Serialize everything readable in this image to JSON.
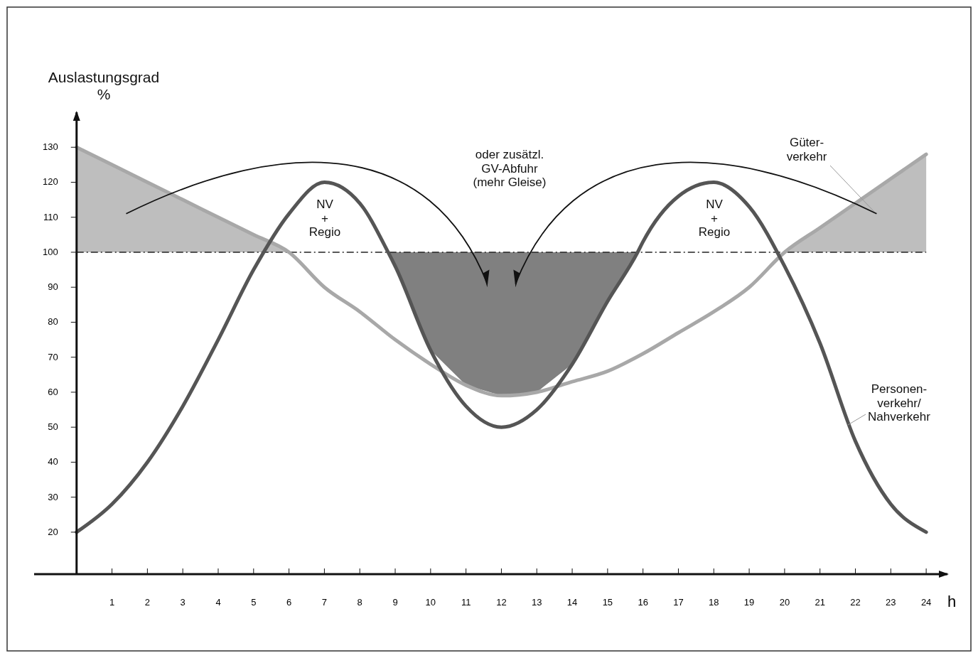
{
  "chart_data": {
    "type": "line",
    "ylabel": "Auslastungsgrad\n%",
    "xlabel": "h",
    "xlim": [
      -1.2,
      24.6
    ],
    "ylim": [
      8,
      140
    ],
    "xticks": [
      1,
      2,
      3,
      4,
      5,
      6,
      7,
      8,
      9,
      10,
      11,
      12,
      13,
      14,
      15,
      16,
      17,
      18,
      19,
      20,
      21,
      22,
      23,
      24
    ],
    "yticks": [
      20,
      30,
      40,
      50,
      60,
      70,
      80,
      90,
      100,
      110,
      120,
      130
    ],
    "grid": false,
    "ref_lines": [
      {
        "axis": "y",
        "value": 100,
        "color": "#222222",
        "line_style": "dashed"
      }
    ],
    "series": [
      {
        "color": "#a8a8a8",
        "x": [
          0,
          1,
          2,
          3,
          4,
          5,
          6,
          7,
          8,
          9,
          10,
          11,
          12,
          13,
          14,
          15,
          16,
          17,
          18,
          19,
          20,
          21,
          22,
          23,
          24
        ],
        "values": [
          130,
          125,
          120,
          115,
          110,
          105,
          100,
          90,
          83,
          75,
          68,
          62,
          59,
          60,
          63,
          66,
          71,
          77,
          83,
          90,
          100,
          107,
          114,
          121,
          128
        ],
        "lower": [
          100,
          100,
          100,
          100,
          100,
          100,
          100,
          null,
          null,
          null,
          null,
          null,
          null,
          null,
          null,
          null,
          null,
          null,
          null,
          null,
          100,
          100,
          100,
          100,
          100
        ],
        "upper": [
          130,
          125,
          120,
          115,
          110,
          105,
          100,
          null,
          null,
          null,
          null,
          null,
          null,
          null,
          null,
          null,
          null,
          null,
          null,
          null,
          100,
          107,
          114,
          121,
          128
        ]
      },
      {
        "color": "#555555",
        "x": [
          0,
          1,
          2,
          3,
          4,
          5,
          6,
          7,
          8,
          8.8,
          9,
          10,
          11,
          12,
          13,
          14,
          15,
          15.85,
          16,
          17,
          18,
          19,
          20,
          21,
          22,
          23,
          24
        ],
        "values": [
          20,
          28,
          40,
          56,
          75,
          95,
          111,
          120,
          114,
          100,
          96,
          72,
          56,
          50,
          55,
          68,
          86,
          100,
          103,
          116,
          120,
          113,
          96,
          74,
          46,
          28,
          20
        ],
        "lower": [
          null,
          null,
          null,
          null,
          null,
          null,
          null,
          null,
          null,
          100,
          96,
          72,
          62,
          59,
          60,
          68,
          86,
          100,
          null,
          null,
          null,
          null,
          null,
          null,
          null,
          null,
          null
        ],
        "upper": [
          null,
          null,
          null,
          null,
          null,
          null,
          null,
          null,
          null,
          100,
          100,
          100,
          100,
          100,
          100,
          100,
          100,
          100,
          null,
          null,
          null,
          null,
          null,
          null,
          null,
          null,
          null
        ]
      }
    ],
    "annotations": [
      "NV\n+\nRegio",
      "oder zusätzl.\nGV-Abfuhr\n(mehr Gleise)",
      "NV\n+\nRegio",
      "Güter-\nverkehr",
      "Personen-\nverkehr/\nNahverkehr"
    ]
  }
}
